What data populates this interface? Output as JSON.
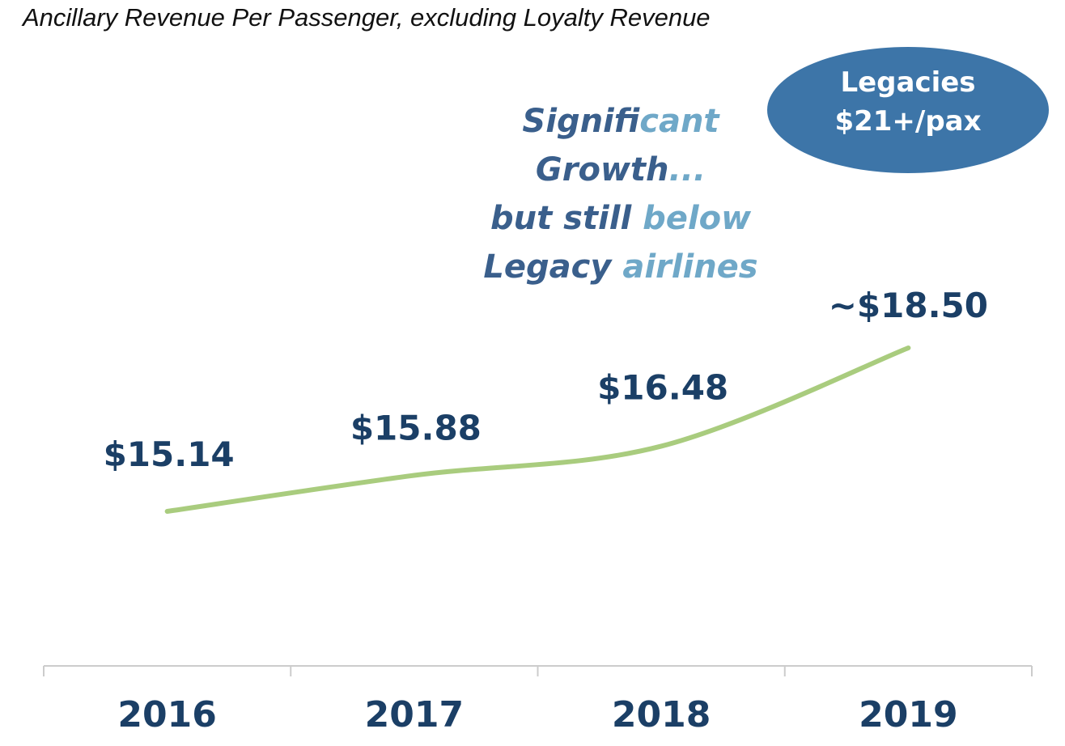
{
  "title": "Ancillary Revenue Per Passenger, excluding Loyalty Revenue",
  "callout": {
    "line1": "Legacies",
    "line2": "$21+/pax",
    "color": "#3d75a8"
  },
  "annotation": {
    "line1": {
      "dark": "Signifi",
      "light": "cant"
    },
    "line2": {
      "dark": "Growth",
      "light": "..."
    },
    "line3": {
      "dark": "but still ",
      "light": "below"
    },
    "line4": {
      "dark": "Legacy ",
      "light": "airlines"
    }
  },
  "colors": {
    "line": "#a9cc7e",
    "labels": "#1b3f66",
    "axis": "#cccccc"
  },
  "chart_data": {
    "type": "line",
    "categories": [
      "2016",
      "2017",
      "2018",
      "2019"
    ],
    "values": [
      15.14,
      15.88,
      16.48,
      18.5
    ],
    "data_labels": [
      "$15.14",
      "$15.88",
      "$16.48",
      "~$18.50"
    ],
    "title": "",
    "xlabel": "",
    "ylabel": "",
    "grid": false
  }
}
